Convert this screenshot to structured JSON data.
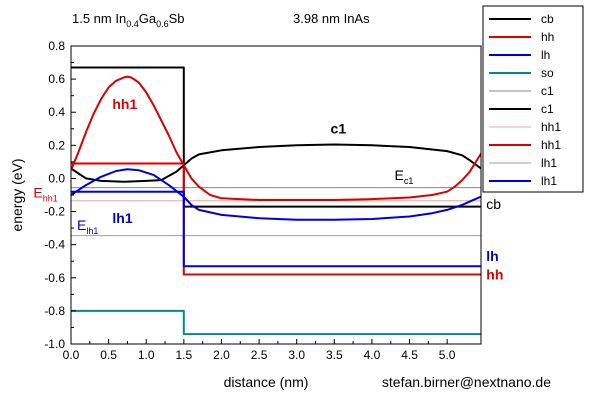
{
  "chart_data": {
    "type": "line",
    "title_left": {
      "main": "1.5 nm In",
      "sub1": "0.4",
      "mid": "Ga",
      "sub2": "0.6",
      "tail": "Sb"
    },
    "title_right": "3.98 nm InAs",
    "xlabel": "distance (nm)",
    "ylabel": "energy (eV)",
    "credit": "stefan.birner@nextnano.de",
    "xlim": [
      0.0,
      5.45
    ],
    "ylim": [
      -1.0,
      0.8
    ],
    "xticks": [
      "0.0",
      "0.5",
      "1.0",
      "1.5",
      "2.0",
      "2.5",
      "3.0",
      "3.5",
      "4.0",
      "4.5",
      "5.0"
    ],
    "xtick_values": [
      0.0,
      0.5,
      1.0,
      1.5,
      2.0,
      2.5,
      3.0,
      3.5,
      4.0,
      4.5,
      5.0
    ],
    "yticks": [
      "0.8",
      "0.6",
      "0.4",
      "0.2",
      "0.0",
      "-0.2",
      "-0.4",
      "-0.6",
      "-0.8",
      "-1.0"
    ],
    "ytick_values": [
      0.8,
      0.6,
      0.4,
      0.2,
      0.0,
      -0.2,
      -0.4,
      -0.6,
      -0.8,
      -1.0
    ],
    "series": [
      {
        "name": "cb",
        "color": "#000000",
        "width": 2,
        "x": [
          0,
          1.5,
          1.5,
          5.45
        ],
        "y": [
          0.67,
          0.67,
          -0.17,
          -0.17
        ]
      },
      {
        "name": "hh",
        "color": "#dd0000",
        "width": 2,
        "x": [
          0,
          1.5,
          1.5,
          5.45
        ],
        "y": [
          0.09,
          0.09,
          -0.58,
          -0.58
        ]
      },
      {
        "name": "lh",
        "color": "#0000dd",
        "width": 2,
        "x": [
          0,
          1.5,
          1.5,
          5.45
        ],
        "y": [
          -0.08,
          -0.08,
          -0.53,
          -0.53
        ]
      },
      {
        "name": "so",
        "color": "#008b8b",
        "width": 2,
        "x": [
          0,
          1.5,
          1.5,
          5.45
        ],
        "y": [
          -0.8,
          -0.8,
          -0.94,
          -0.94
        ]
      },
      {
        "name": "c1",
        "color": "#888888",
        "width": 1,
        "x": [
          0,
          5.45
        ],
        "y": [
          -0.055,
          -0.055
        ]
      },
      {
        "name": "c1",
        "color": "#000000",
        "width": 2,
        "x": [
          0,
          0.2,
          0.4,
          0.7,
          1.0,
          1.2,
          1.4,
          1.5,
          1.6,
          1.7,
          2.0,
          2.5,
          3.0,
          3.5,
          4.0,
          4.5,
          5.0,
          5.2,
          5.3,
          5.45
        ],
        "y": [
          0.06,
          0.0,
          -0.015,
          -0.02,
          -0.015,
          -0.01,
          0.04,
          0.08,
          0.12,
          0.145,
          0.17,
          0.19,
          0.2,
          0.205,
          0.2,
          0.19,
          0.165,
          0.14,
          0.11,
          0.06
        ]
      },
      {
        "name": "hh1",
        "color": "#f4a0a0",
        "width": 1,
        "x": [
          0,
          5.45
        ],
        "y": [
          -0.135,
          -0.135
        ]
      },
      {
        "name": "hh1",
        "color": "#dd0000",
        "width": 2,
        "x": [
          0,
          0.1,
          0.2,
          0.3,
          0.4,
          0.5,
          0.6,
          0.7,
          0.75,
          0.8,
          0.9,
          1.0,
          1.1,
          1.2,
          1.3,
          1.4,
          1.5,
          1.6,
          1.7,
          1.85,
          2.0,
          2.5,
          3.0,
          3.5,
          4.0,
          4.5,
          4.8,
          5.0,
          5.1,
          5.2,
          5.3,
          5.45
        ],
        "y": [
          0.05,
          0.16,
          0.28,
          0.39,
          0.48,
          0.55,
          0.59,
          0.61,
          0.615,
          0.61,
          0.58,
          0.52,
          0.44,
          0.35,
          0.26,
          0.16,
          0.08,
          0.0,
          -0.05,
          -0.1,
          -0.12,
          -0.13,
          -0.13,
          -0.13,
          -0.125,
          -0.115,
          -0.1,
          -0.08,
          -0.05,
          -0.01,
          0.04,
          0.15
        ]
      },
      {
        "name": "lh1",
        "color": "#9999cc",
        "width": 1,
        "x": [
          0,
          5.45
        ],
        "y": [
          -0.345,
          -0.345
        ]
      },
      {
        "name": "lh1",
        "color": "#0000dd",
        "width": 2,
        "x": [
          0,
          0.2,
          0.4,
          0.6,
          0.75,
          0.9,
          1.1,
          1.3,
          1.5,
          1.6,
          1.7,
          2.0,
          2.5,
          3.0,
          3.5,
          4.0,
          4.5,
          4.8,
          5.0,
          5.2,
          5.3,
          5.45
        ],
        "y": [
          -0.1,
          -0.04,
          0.01,
          0.045,
          0.055,
          0.05,
          0.02,
          -0.04,
          -0.11,
          -0.16,
          -0.19,
          -0.22,
          -0.24,
          -0.25,
          -0.25,
          -0.245,
          -0.23,
          -0.21,
          -0.19,
          -0.16,
          -0.14,
          -0.11
        ]
      }
    ],
    "annotations": [
      {
        "id": "hh1",
        "text": "hh1",
        "x": 0.55,
        "y": 0.42,
        "color": "#dd0000",
        "bold": true
      },
      {
        "id": "c1",
        "text": "c1",
        "x": 3.45,
        "y": 0.27,
        "color": "#000000",
        "bold": true
      },
      {
        "id": "lh1",
        "text": "lh1",
        "x": 0.55,
        "y": -0.27,
        "color": "#0000dd",
        "bold": true
      },
      {
        "id": "cb",
        "text": "cb",
        "x": 5.52,
        "y": -0.185,
        "color": "#000000",
        "bold": false
      },
      {
        "id": "lh",
        "text": "lh",
        "x": 5.52,
        "y": -0.5,
        "color": "#0000dd",
        "bold": true
      },
      {
        "id": "hh",
        "text": "hh",
        "x": 5.52,
        "y": -0.61,
        "color": "#dd0000",
        "bold": true
      },
      {
        "id": "ec1",
        "text": "E",
        "sub": "c1",
        "x": 4.3,
        "y": -0.01,
        "color": "#000000",
        "bold": false
      },
      {
        "id": "ehh1",
        "text": "E",
        "sub": "hh1",
        "x": -0.5,
        "y": -0.115,
        "color": "#dd0000",
        "bold": false
      },
      {
        "id": "elh1",
        "text": "E",
        "sub": "lh1",
        "x": 0.08,
        "y": -0.31,
        "color": "#0000dd",
        "bold": false
      }
    ],
    "legend_position": "right"
  }
}
